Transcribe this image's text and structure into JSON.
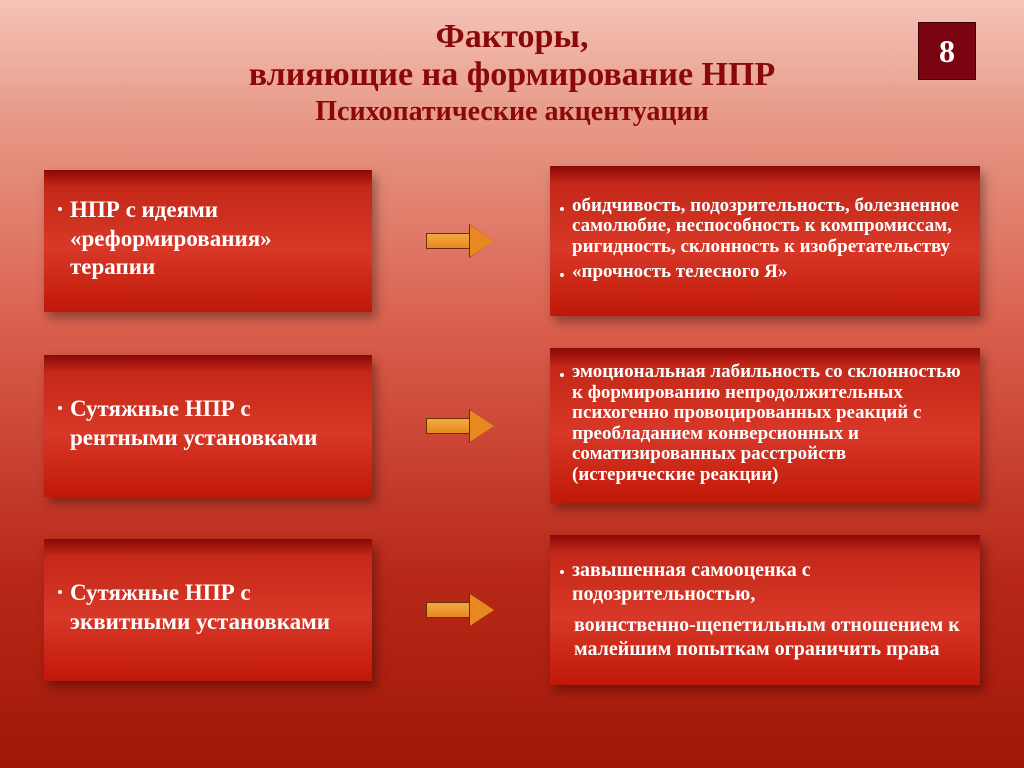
{
  "header": {
    "title_line1": "Факторы,",
    "title_line2": "влияющие на формирование НПР",
    "subtitle": "Психопатические акцентуации",
    "page_number": "8"
  },
  "rows": [
    {
      "left": "НПР с идеями «реформирования» терапии",
      "right_items": [
        "обидчивость, подозрительность, болезненное самолюбие, неспособность к компромиссам, ригидность, склонность к изобретательству",
        "«прочность телесного Я»"
      ],
      "right_class": "right-text"
    },
    {
      "left": "Сутяжные НПР с рентными установками",
      "right_items": [
        "эмоциональная лабильность со склонностью к формированию непродолжительных психогенно провоцированных реакций с преобладанием конверсионных и соматизированных расстройств (истерические реакции)"
      ],
      "right_class": "right-text"
    },
    {
      "left": "Сутяжные НПР с эквитными установками",
      "right_items": [
        "завышенная самооценка с подозрительностью,"
      ],
      "right_sub": "воинственно-щепетильным отношением к малейшим попыткам ограничить права",
      "right_class": "right-text-md"
    }
  ],
  "colors": {
    "title_color": "#8a0808",
    "box_text_color": "#ffffff",
    "arrow_fill": "#e88820",
    "arrow_border": "#6a3008",
    "badge_bg": "#7a0410"
  }
}
